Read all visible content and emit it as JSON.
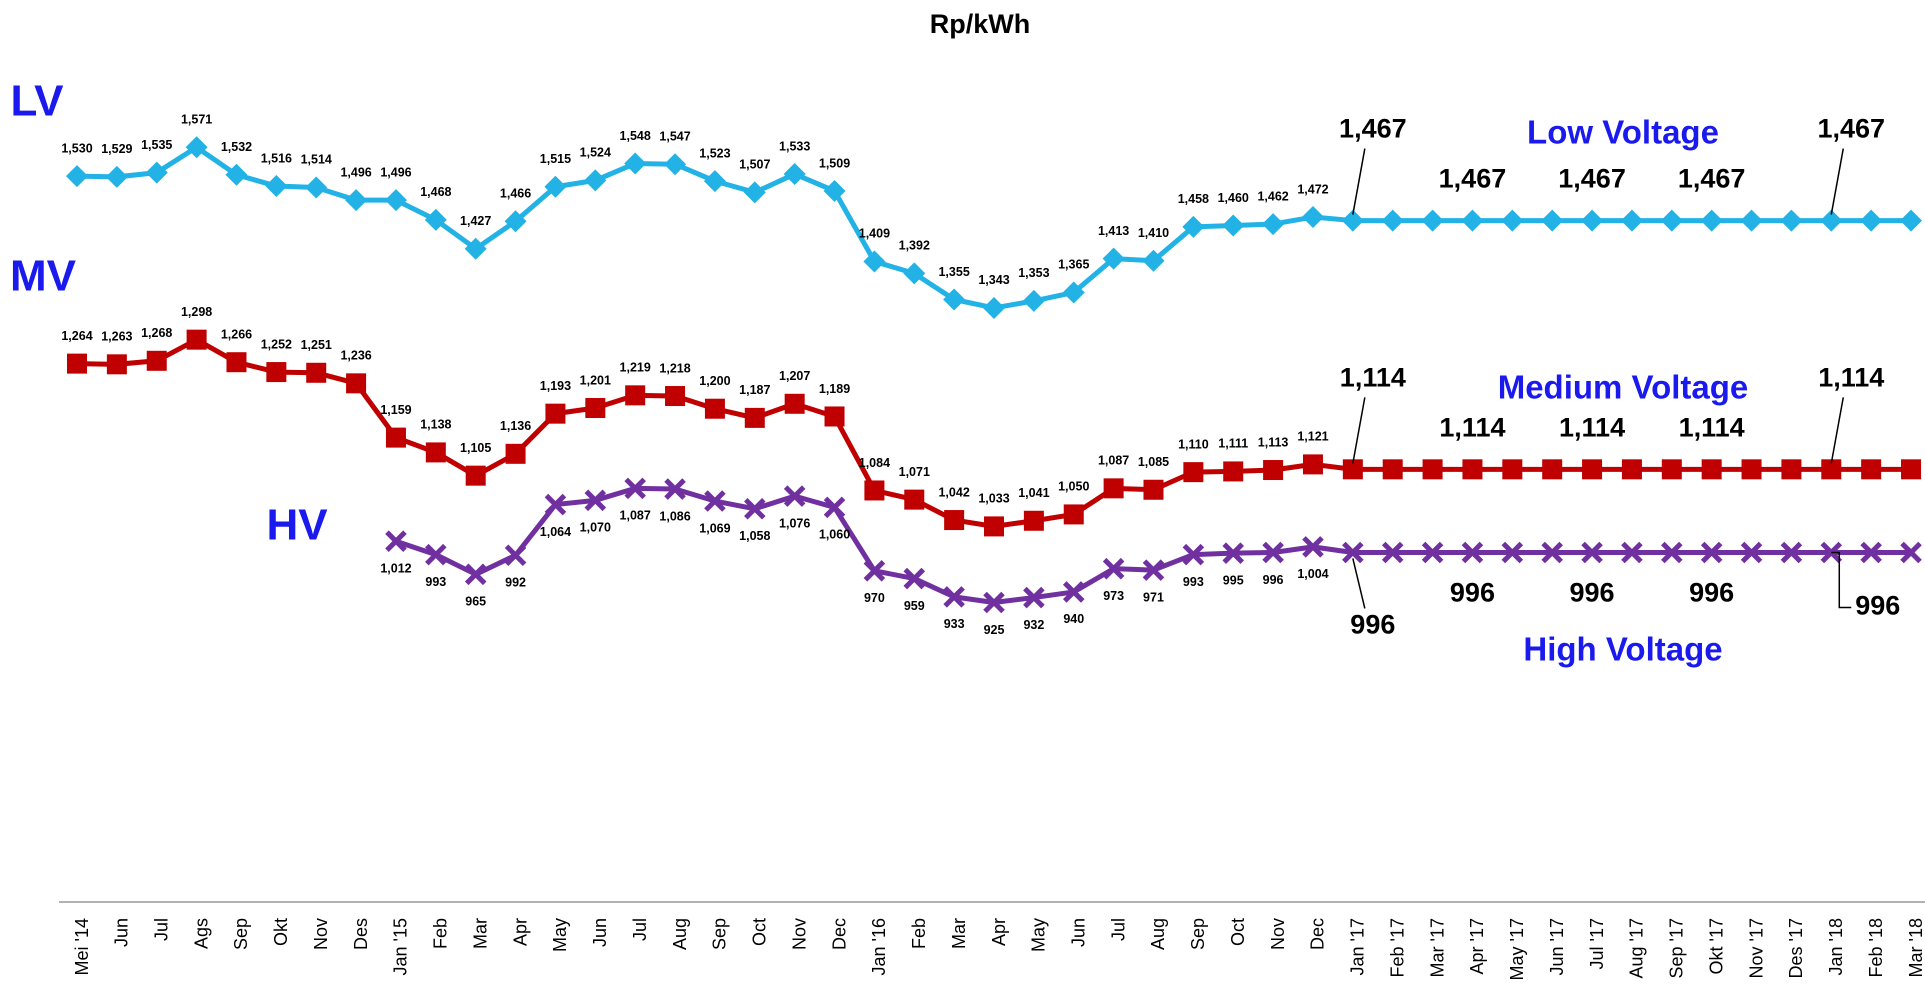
{
  "chart_data": {
    "type": "line",
    "title": "Rp/kWh",
    "categories": [
      "Mei '14",
      "Jun",
      "Jul",
      "Ags",
      "Sep",
      "Okt",
      "Nov",
      "Des",
      "Jan '15",
      "Feb",
      "Mar",
      "Apr",
      "May",
      "Jun",
      "Jul",
      "Aug",
      "Sep",
      "Oct",
      "Nov",
      "Dec",
      "Jan '16",
      "Feb",
      "Mar",
      "Apr",
      "May",
      "Jun",
      "Jul",
      "Aug",
      "Sep",
      "Oct",
      "Nov",
      "Dec",
      "Jan '17",
      "Feb '17",
      "Mar '17",
      "Apr '17",
      "May '17",
      "Jun '17",
      "Jul '17",
      "Aug '17",
      "Sep '17",
      "Okt '17",
      "Nov '17",
      "Des '17",
      "Jan '18",
      "Feb '18",
      "Mar '18"
    ],
    "ylim": [
      500,
      1780
    ],
    "annotations": [
      "LV",
      "MV",
      "HV"
    ],
    "series": [
      {
        "name": "Low Voltage",
        "color": "#22b2e6",
        "marker": "diamond",
        "values": [
          1530,
          1529,
          1535,
          1571,
          1532,
          1516,
          1514,
          1496,
          1496,
          1468,
          1427,
          1466,
          1515,
          1524,
          1548,
          1547,
          1523,
          1507,
          1533,
          1509,
          1409,
          1392,
          1355,
          1343,
          1353,
          1365,
          1413,
          1410,
          1458,
          1460,
          1462,
          1472,
          1467,
          1467,
          1467,
          1467,
          1467,
          1467,
          1467,
          1467,
          1467,
          1467,
          1467,
          1467,
          1467,
          1467,
          1467
        ],
        "value_labels": [
          "1,530",
          "1,529",
          "1,535",
          "1,571",
          "1,532",
          "1,516",
          "1,514",
          "1,496",
          "1,496",
          "1,468",
          "1,427",
          "1,466",
          "1,515",
          "1,524",
          "1,548",
          "1,547",
          "1,523",
          "1,507",
          "1,533",
          "1,509",
          "1,409",
          "1,392",
          "1,355",
          "1,343",
          "1,353",
          "1,365",
          "1,413",
          "1,410",
          "1,458",
          "1,460",
          "1,462",
          "1,472",
          "1,467",
          null,
          null,
          "1,467",
          null,
          null,
          "1,467",
          null,
          null,
          "1,467",
          null,
          null,
          "1,467",
          null,
          null
        ]
      },
      {
        "name": "Medium Voltage",
        "color": "#c00000",
        "marker": "square",
        "values": [
          1264,
          1263,
          1268,
          1298,
          1266,
          1252,
          1251,
          1236,
          1159,
          1138,
          1105,
          1136,
          1193,
          1201,
          1219,
          1218,
          1200,
          1187,
          1207,
          1189,
          1084,
          1071,
          1042,
          1033,
          1041,
          1050,
          1087,
          1085,
          1110,
          1111,
          1113,
          1121,
          1114,
          1114,
          1114,
          1114,
          1114,
          1114,
          1114,
          1114,
          1114,
          1114,
          1114,
          1114,
          1114,
          1114,
          1114
        ],
        "value_labels": [
          "1,264",
          "1,263",
          "1,268",
          "1,298",
          "1,266",
          "1,252",
          "1,251",
          "1,236",
          "1,159",
          "1,138",
          "1,105",
          "1,136",
          "1,193",
          "1,201",
          "1,219",
          "1,218",
          "1,200",
          "1,187",
          "1,207",
          "1,189",
          "1,084",
          "1,071",
          "1,042",
          "1,033",
          "1,041",
          "1,050",
          "1,087",
          "1,085",
          "1,110",
          "1,111",
          "1,113",
          "1,121",
          "1,114",
          null,
          null,
          "1,114",
          null,
          null,
          "1,114",
          null,
          null,
          "1,114",
          null,
          null,
          "1,114",
          null,
          null
        ]
      },
      {
        "name": "High Voltage",
        "color": "#7030a0",
        "marker": "x",
        "values": [
          null,
          null,
          null,
          null,
          null,
          null,
          null,
          null,
          1012,
          993,
          965,
          992,
          1064,
          1070,
          1087,
          1086,
          1069,
          1058,
          1076,
          1060,
          970,
          959,
          933,
          925,
          932,
          940,
          973,
          971,
          993,
          995,
          996,
          1004,
          996,
          996,
          996,
          996,
          996,
          996,
          996,
          996,
          996,
          996,
          996,
          996,
          996,
          996,
          996
        ],
        "value_labels": [
          null,
          null,
          null,
          null,
          null,
          null,
          null,
          null,
          "1,012",
          "993",
          "965",
          "992",
          "1,064",
          "1,070",
          "1,087",
          "1,086",
          "1,069",
          "1,058",
          "1,076",
          "1,060",
          "970",
          "959",
          "933",
          "925",
          "932",
          "940",
          "973",
          "971",
          "993",
          "995",
          "996",
          "1,004",
          "996",
          null,
          null,
          "996",
          null,
          null,
          "996",
          null,
          null,
          "996",
          null,
          null,
          "996",
          null,
          null
        ]
      }
    ]
  }
}
